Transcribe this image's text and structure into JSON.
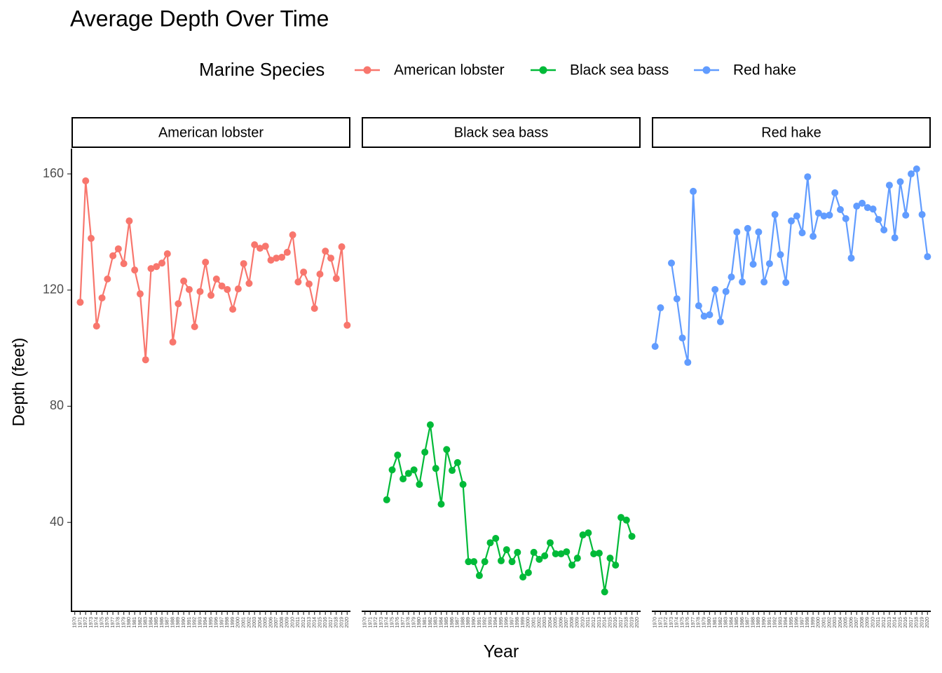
{
  "chart_data": {
    "type": "line",
    "title": "Average Depth Over Time",
    "legend_title": "Marine Species",
    "x_label": "Year",
    "y_label": "Depth (feet)",
    "facet": true,
    "x": [
      1970,
      1971,
      1972,
      1973,
      1974,
      1975,
      1976,
      1977,
      1978,
      1979,
      1980,
      1981,
      1982,
      1983,
      1984,
      1985,
      1986,
      1987,
      1988,
      1989,
      1990,
      1991,
      1992,
      1993,
      1994,
      1995,
      1996,
      1997,
      1998,
      1999,
      2000,
      2001,
      2002,
      2003,
      2004,
      2005,
      2006,
      2007,
      2008,
      2009,
      2010,
      2011,
      2012,
      2013,
      2014,
      2015,
      2016,
      2017,
      2018,
      2019,
      2020
    ],
    "xlim": [
      1969.4,
      2020.6
    ],
    "ylim": [
      9.4,
      168.7
    ],
    "yticks": [
      40,
      80,
      120,
      160
    ],
    "series": [
      {
        "name": "American lobster",
        "color": "#F8766D",
        "values": [
          null,
          115.8,
          157.6,
          137.8,
          107.6,
          117.3,
          123.8,
          131.8,
          134.2,
          129.1,
          143.8,
          126.9,
          118.7,
          96.0,
          127.4,
          128.1,
          129.3,
          132.5,
          102.1,
          115.3,
          123.1,
          120.2,
          107.4,
          119.5,
          129.6,
          118.2,
          123.8,
          121.4,
          120.2,
          113.4,
          120.4,
          129.1,
          122.3,
          135.6,
          134.4,
          135.1,
          130.3,
          131.0,
          131.3,
          133.0,
          139.0,
          122.8,
          126.2,
          122.1,
          113.7,
          125.5,
          133.4,
          131.0,
          124.0,
          134.9,
          107.9
        ]
      },
      {
        "name": "Black sea bass",
        "color": "#00BA38",
        "values": [
          null,
          null,
          null,
          null,
          47.8,
          58.1,
          63.2,
          55.0,
          56.9,
          58.1,
          53.1,
          64.2,
          73.6,
          58.6,
          46.3,
          65.1,
          57.9,
          60.6,
          53.1,
          26.5,
          26.5,
          21.7,
          26.5,
          33.0,
          34.5,
          26.8,
          30.6,
          26.5,
          29.7,
          21.2,
          22.7,
          29.7,
          27.3,
          28.5,
          33.0,
          29.2,
          29.2,
          29.9,
          25.3,
          27.7,
          35.7,
          36.4,
          29.2,
          29.4,
          16.1,
          27.7,
          25.3,
          41.7,
          40.8,
          35.2,
          null
        ]
      },
      {
        "name": "Red hake",
        "color": "#619CFF",
        "values": [
          100.6,
          113.9,
          null,
          129.3,
          117.0,
          103.5,
          95.1,
          154.0,
          114.6,
          111.0,
          111.5,
          120.2,
          109.1,
          119.5,
          124.5,
          140.0,
          122.8,
          141.2,
          128.9,
          140.0,
          122.8,
          129.1,
          146.0,
          132.2,
          122.6,
          143.8,
          145.5,
          139.7,
          159.0,
          138.5,
          146.5,
          145.5,
          145.8,
          153.5,
          147.7,
          144.6,
          131.0,
          148.9,
          149.9,
          148.4,
          147.9,
          144.3,
          140.7,
          156.1,
          138.0,
          157.3,
          145.8,
          160.0,
          161.7,
          146.0,
          131.5
        ]
      }
    ]
  }
}
